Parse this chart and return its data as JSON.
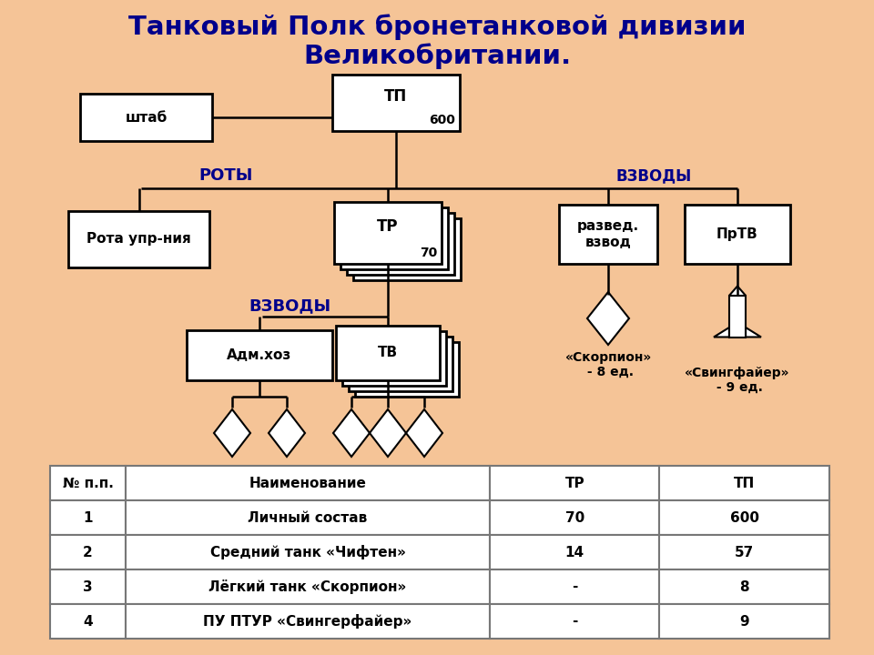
{
  "title_line1": "Танковый Полк бронетанковой дивизии",
  "title_line2": "Великобритании.",
  "title_color": "#00008B",
  "bg_color": "#F5C eighteen97",
  "box_color": "#FFFFFF",
  "box_edge": "#000000",
  "text_color": "#000000",
  "label_color": "#00008B",
  "table_headers": [
    "№ п.п.",
    "Наименование",
    "ТР",
    "ТП"
  ],
  "table_rows": [
    [
      "1",
      "Личный состав",
      "70",
      "600"
    ],
    [
      "2",
      "Средний танк «Чифтен»",
      "14",
      "57"
    ],
    [
      "3",
      "Лёгкий танк «Скорпион»",
      "-",
      "8"
    ],
    [
      "4",
      "ПУ ПТУР «Свингерфайер»",
      "-",
      "9"
    ]
  ],
  "bg_color_real": "#F5C497"
}
